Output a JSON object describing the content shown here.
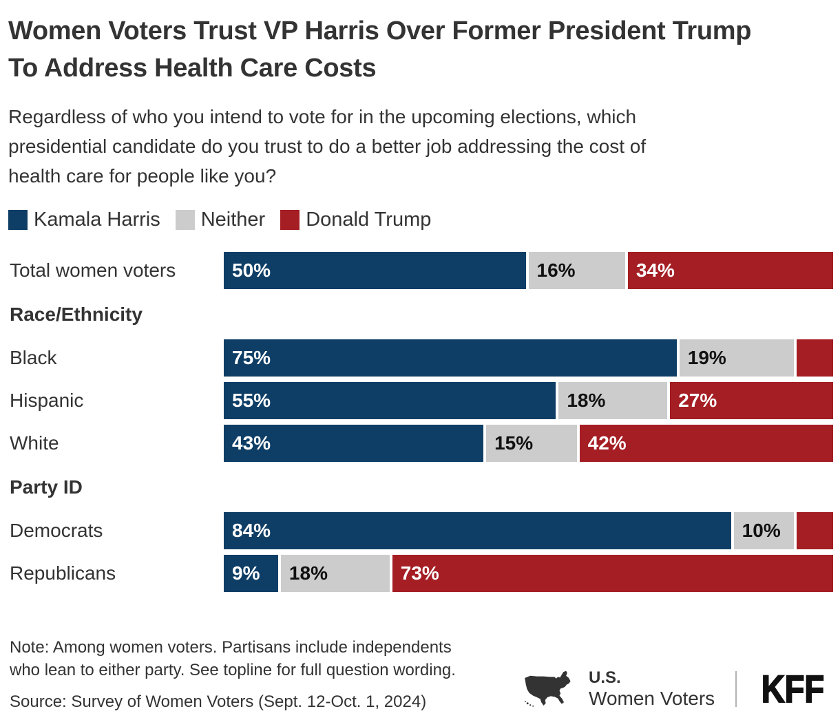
{
  "header": {
    "title": "Women Voters Trust VP Harris Over Former President Trump\nTo Address Health Care Costs",
    "subtitle": "Regardless of who you intend to vote for in the upcoming elections, which\npresidential candidate do you trust to do a better job addressing the cost of\nhealth care for people like you?"
  },
  "legend": {
    "items": [
      {
        "label": "Kamala Harris",
        "color": "#0e3e66"
      },
      {
        "label": "Neither",
        "color": "#cccccc"
      },
      {
        "label": "Donald Trump",
        "color": "#a41e24"
      }
    ]
  },
  "colors": {
    "harris": "#0e3e66",
    "neither": "#cccccc",
    "trump": "#a41e24",
    "label_on_dark": "#ffffff",
    "label_on_gray": "#111111",
    "text": "#333333"
  },
  "chart_data": {
    "type": "bar",
    "stacked": true,
    "orientation": "horizontal",
    "unit": "%",
    "xlim": [
      0,
      100
    ],
    "grid": false,
    "legend_position": "top",
    "series": [
      "Kamala Harris",
      "Neither",
      "Donald Trump"
    ],
    "rows": [
      {
        "kind": "bar",
        "label": "Total women voters",
        "values": [
          50,
          16,
          34
        ],
        "value_labels": [
          "50%",
          "16%",
          "34%"
        ]
      },
      {
        "kind": "section",
        "label": "Race/Ethnicity"
      },
      {
        "kind": "bar",
        "label": "Black",
        "values": [
          75,
          19,
          6
        ],
        "value_labels": [
          "75%",
          "19%",
          ""
        ]
      },
      {
        "kind": "bar",
        "label": "Hispanic",
        "values": [
          55,
          18,
          27
        ],
        "value_labels": [
          "55%",
          "18%",
          "27%"
        ]
      },
      {
        "kind": "bar",
        "label": "White",
        "values": [
          43,
          15,
          42
        ],
        "value_labels": [
          "43%",
          "15%",
          "42%"
        ]
      },
      {
        "kind": "section",
        "label": "Party ID"
      },
      {
        "kind": "bar",
        "label": "Democrats",
        "values": [
          84,
          10,
          6
        ],
        "value_labels": [
          "84%",
          "10%",
          ""
        ]
      },
      {
        "kind": "bar",
        "label": "Republicans",
        "values": [
          9,
          18,
          73
        ],
        "value_labels": [
          "9%",
          "18%",
          "73%"
        ]
      }
    ]
  },
  "footer": {
    "note": "Note: Among women voters. Partisans include independents\nwho lean to either party. See topline for full question wording.",
    "source": "Source: Survey of Women Voters (Sept. 12-Oct. 1, 2024)",
    "branding": {
      "region_label_top": "U.S.",
      "region_label_bottom": "Women Voters",
      "logo": "KFF",
      "map_icon": "us-map-icon"
    }
  }
}
